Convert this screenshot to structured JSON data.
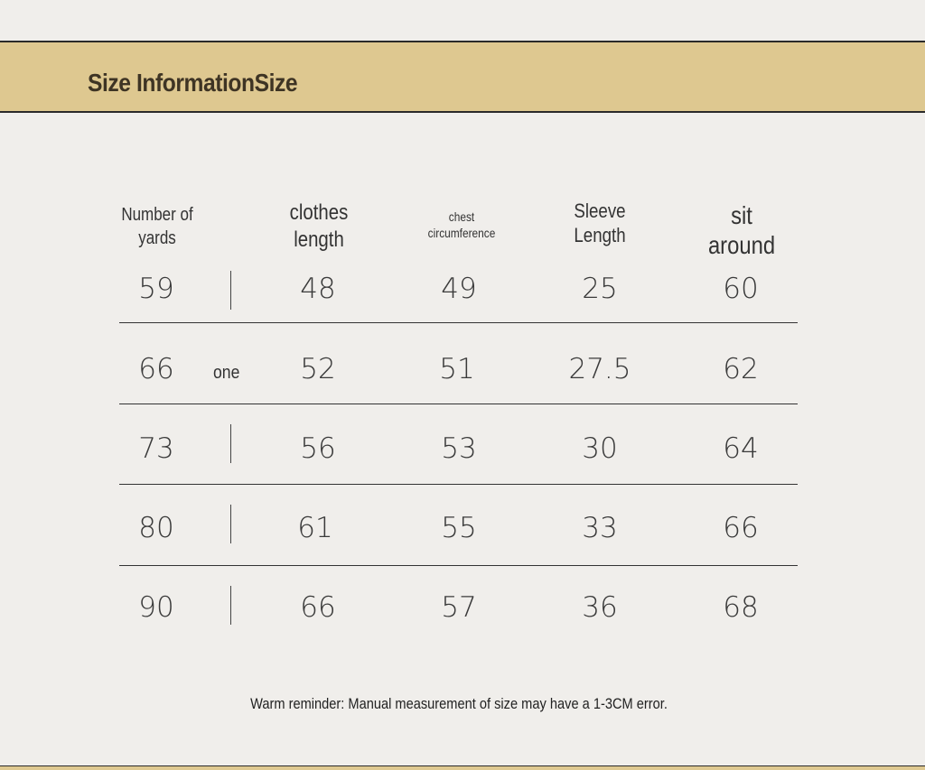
{
  "banner": {
    "title": "Size InformationSize"
  },
  "table": {
    "headers": [
      {
        "line1": "Number of",
        "line2": "yards"
      },
      {
        "line1": "clothes",
        "line2": "length"
      },
      {
        "line1": "chest",
        "line2": "circumference"
      },
      {
        "line1": "Sleeve",
        "line2": "Length"
      },
      {
        "line1": "sit",
        "line2": "around"
      }
    ],
    "rows": [
      [
        "59",
        "48",
        "49",
        "25",
        "60"
      ],
      [
        "66",
        "52",
        "51",
        "27.5",
        "62"
      ],
      [
        "73",
        "56",
        "53",
        "30",
        "64"
      ],
      [
        "80",
        "61",
        "55",
        "33",
        "66"
      ],
      [
        "90",
        "66",
        "57",
        "36",
        "68"
      ]
    ],
    "side_label": "one"
  },
  "footer": {
    "reminder": "Warm reminder: Manual measurement of size may have a 1-3CM error."
  }
}
